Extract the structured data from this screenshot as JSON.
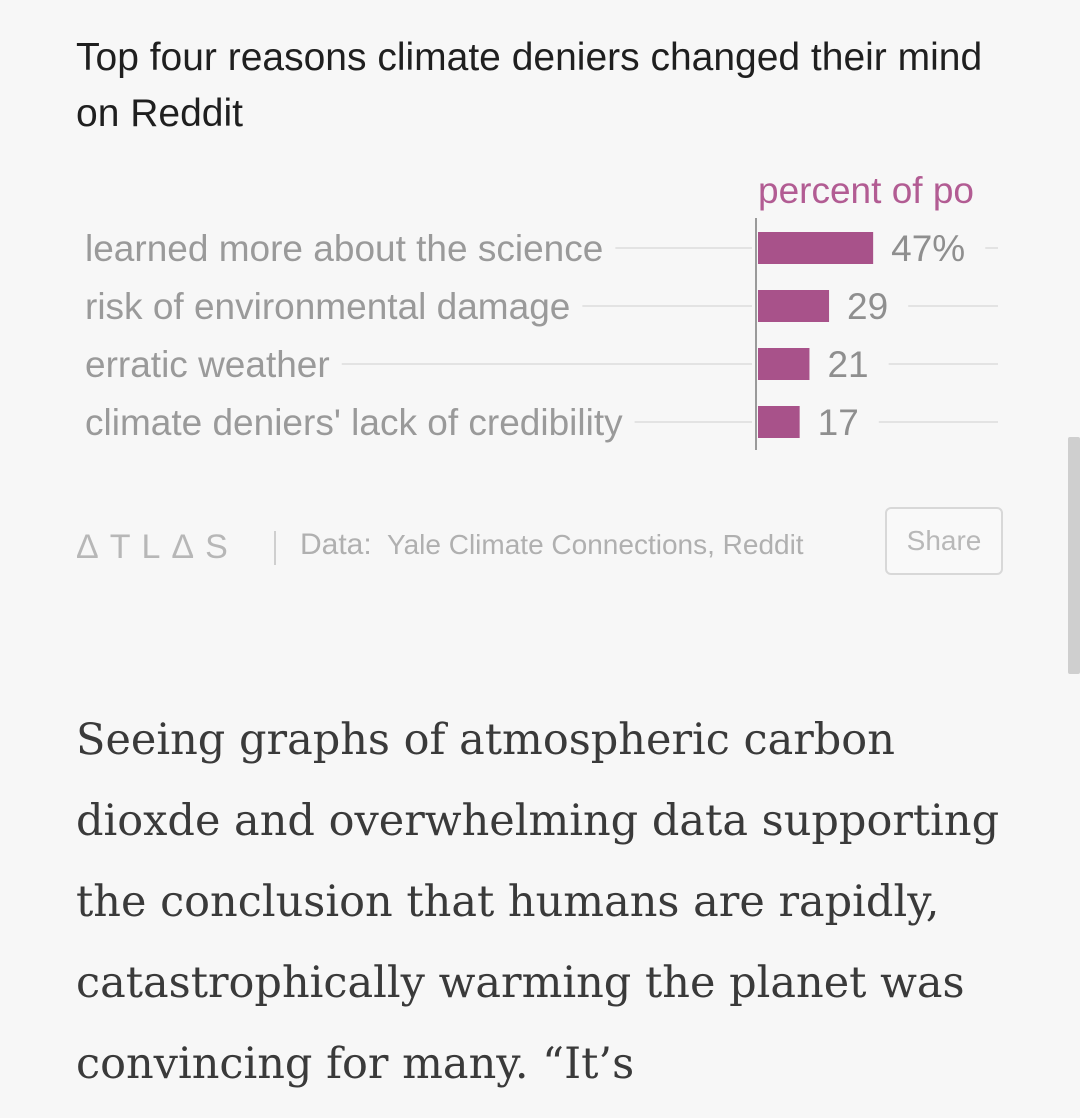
{
  "chart_data": {
    "type": "bar",
    "orientation": "horizontal",
    "title": "Top four reasons climate deniers changed their mind on Reddit",
    "series_label": "percent of po",
    "categories": [
      "learned more about the science",
      "risk of environmental damage",
      "erratic weather",
      "climate deniers' lack of credibility"
    ],
    "values": [
      47,
      29,
      21,
      17
    ],
    "value_labels": [
      "47%",
      "29",
      "21",
      "17"
    ],
    "xlim": [
      0,
      100
    ],
    "bar_color": "#a8528a",
    "label_color": "#9a9a9a",
    "header_color": "#b25c93"
  },
  "footer": {
    "logo": "ATLAS",
    "source_label": "Data:",
    "source_text": "Yale Climate Connections, Reddit",
    "share_label": "Share"
  },
  "article": {
    "text": "Seeing graphs of atmospheric carbon dioxde and overwhelming data supporting the conclusion that humans are rapidly, catastrophically warming the planet was convincing for many. “It’s"
  }
}
